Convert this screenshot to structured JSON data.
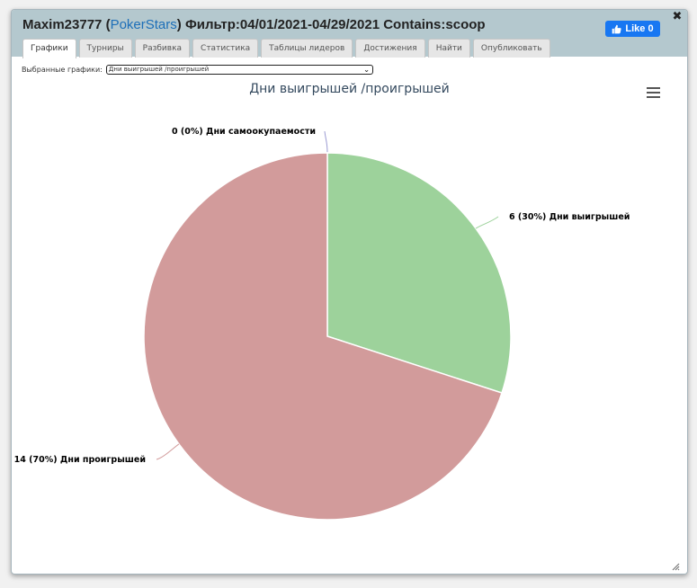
{
  "window": {
    "title_user": "Maxim23777",
    "title_site": "PokerStars",
    "title_filter": "Фильтр:04/01/2021-04/29/2021 Contains:scoop",
    "fb_like_label": "Like 0",
    "close_icon": "close-icon"
  },
  "tabs": [
    {
      "label": "Графики",
      "active": true
    },
    {
      "label": "Турниры",
      "active": false
    },
    {
      "label": "Разбивка",
      "active": false
    },
    {
      "label": "Статистика",
      "active": false
    },
    {
      "label": "Таблицы лидеров",
      "active": false
    },
    {
      "label": "Достижения",
      "active": false
    },
    {
      "label": "Найти",
      "active": false
    },
    {
      "label": "Опубликовать",
      "active": false
    }
  ],
  "selector": {
    "label": "Выбранные графики:",
    "value": "Дни выигрышей /проигрышей"
  },
  "colors": {
    "win": "#9dd29b",
    "lose": "#d29b9b",
    "breakeven": "#9b9bd2",
    "title": "#34495e",
    "titlebar": "#b4c8ce"
  },
  "chart_data": {
    "type": "pie",
    "title": "Дни выигрышей /проигрышей",
    "slices": [
      {
        "name": "Дни самоокупаемости",
        "value": 0,
        "percent": 0,
        "label": "0 (0%) Дни самоокупаемости",
        "color": "#9b9bd2"
      },
      {
        "name": "Дни выигрышей",
        "value": 6,
        "percent": 30,
        "label": "6 (30%) Дни выигрышей",
        "color": "#9dd29b"
      },
      {
        "name": "Дни проигрышей",
        "value": 14,
        "percent": 70,
        "label": "14 (70%) Дни проигрышей",
        "color": "#d29b9b"
      }
    ]
  }
}
